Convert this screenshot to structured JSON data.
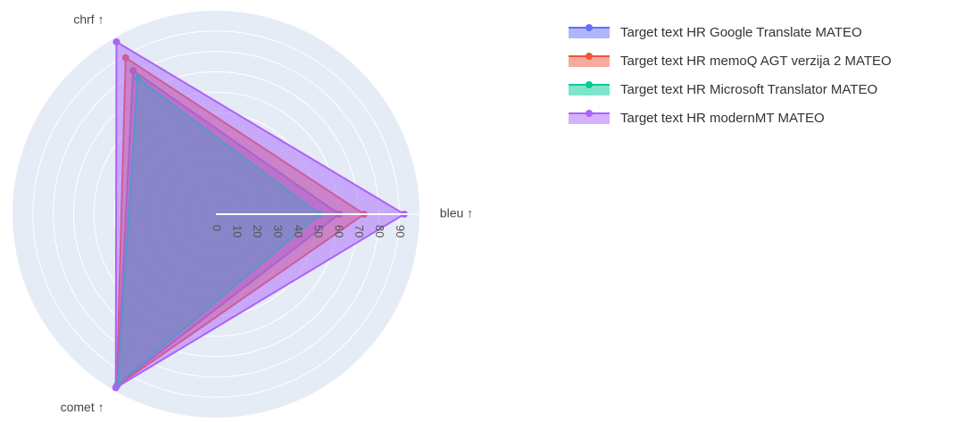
{
  "chart_data": {
    "type": "radar",
    "categories": [
      "bleu ↑",
      "chrf ↑",
      "comet ↑"
    ],
    "series": [
      {
        "name": "Target text HR Google Translate MATEO",
        "color": "#636efa",
        "values": [
          60.5,
          81.5,
          97
        ]
      },
      {
        "name": "Target text HR memoQ AGT verzija 2 MATEO",
        "color": "#EF553B",
        "values": [
          72.8,
          88.8,
          97.5
        ]
      },
      {
        "name": "Target text HR Microsoft Translator MATEO",
        "color": "#00cc96",
        "values": [
          51,
          77,
          96.5
        ]
      },
      {
        "name": "Target text HR modernMT MATEO",
        "color": "#ab63fa",
        "values": [
          92.5,
          97.8,
          98.5
        ]
      }
    ],
    "ylim": [
      0,
      100
    ],
    "yticks": [
      0,
      10,
      20,
      30,
      40,
      50,
      60,
      70,
      80,
      90
    ],
    "grid": true
  }
}
